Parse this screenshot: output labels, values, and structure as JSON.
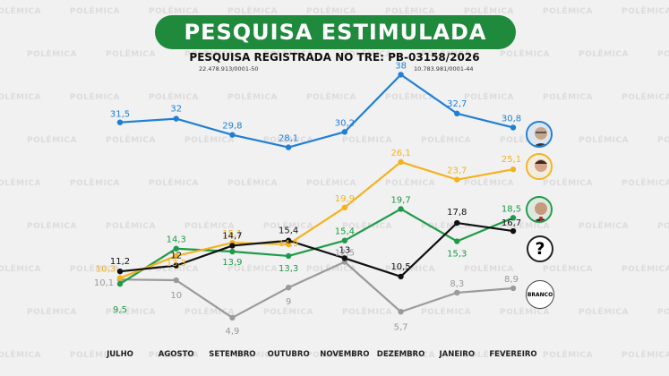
{
  "header": {
    "title": "PESQUISA ESTIMULADA",
    "subtitle": "PESQUISA REGISTRADA NO TRE: PB-03158/2026",
    "reg_left": "22.478.913/0001-50",
    "reg_right": "10.783.981/0001-44"
  },
  "watermark_text": "POLÊMICA",
  "badges": {
    "unknown": "?",
    "blank": "BRANCO"
  },
  "chart_data": {
    "type": "line",
    "categories": [
      "JULHO",
      "AGOSTO",
      "SETEMBRO",
      "OUTUBRO",
      "NOVEMBRO",
      "DEZEMBRO",
      "JANEIRO",
      "FEVEREIRO"
    ],
    "ylim": [
      0,
      40
    ],
    "grid": false,
    "series": [
      {
        "name": "Candidato azul",
        "color": "#1f7fd6",
        "values": [
          31.5,
          32,
          29.8,
          28.1,
          30.2,
          38,
          32.7,
          30.8
        ]
      },
      {
        "name": "Candidato amarelo",
        "color": "#f3b31f",
        "values": [
          10.3,
          13.3,
          15.1,
          14.9,
          19.9,
          26.1,
          23.7,
          25.1
        ]
      },
      {
        "name": "Candidato verde",
        "color": "#1e9b48",
        "values": [
          9.5,
          14.3,
          13.9,
          13.3,
          15.4,
          19.7,
          15.3,
          18.5
        ]
      },
      {
        "name": "Indecisos",
        "color": "#111111",
        "values": [
          11.2,
          12,
          14.7,
          15.4,
          13,
          10.5,
          17.8,
          16.7
        ]
      },
      {
        "name": "Branco",
        "color": "#9a9a9a",
        "values": [
          10.1,
          10,
          4.9,
          9,
          12.5,
          5.7,
          8.3,
          8.9
        ]
      }
    ]
  }
}
